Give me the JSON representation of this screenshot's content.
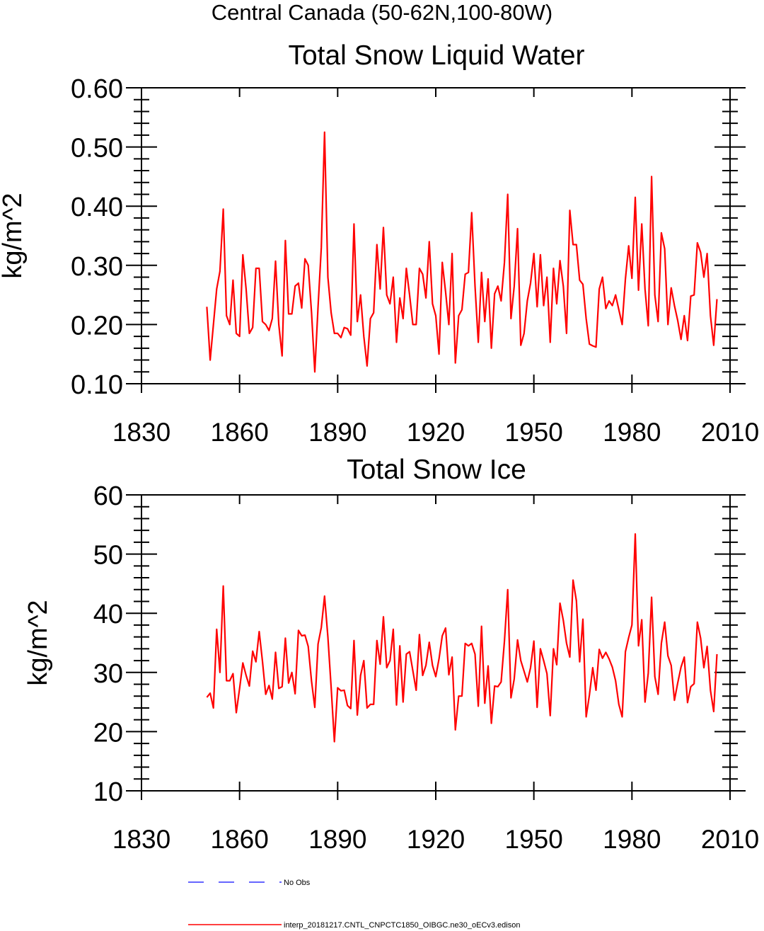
{
  "figure_title": "Central Canada (50-62N,100-80W)",
  "legend": [
    {
      "label": "No Obs",
      "color": "#3333ff",
      "style": "dashed"
    },
    {
      "label": "interp_20181217.CNTL_CNPCTC1850_OIBGC.ne30_oECv3.edison",
      "color": "#ff0000",
      "style": "solid"
    }
  ],
  "chart_data": [
    {
      "type": "line",
      "title": "Total Snow Liquid Water",
      "xlabel": "",
      "ylabel": "kg/m^2",
      "xlim": [
        1830,
        2010
      ],
      "ylim": [
        0.1,
        0.6
      ],
      "xticks": [
        "1830",
        "1860",
        "1890",
        "1920",
        "1950",
        "1980",
        "2010"
      ],
      "yticks": [
        "0.10",
        "0.20",
        "0.30",
        "0.40",
        "0.50",
        "0.60"
      ],
      "series": [
        {
          "name": "interp_20181217.CNTL_CNPCTC1850_OIBGC.ne30_oECv3.edison",
          "color": "#ff0000",
          "x_start": 1850,
          "values": [
            0.23,
            0.14,
            0.2,
            0.26,
            0.29,
            0.395,
            0.215,
            0.2,
            0.275,
            0.185,
            0.18,
            0.318,
            0.26,
            0.185,
            0.195,
            0.295,
            0.295,
            0.205,
            0.2,
            0.19,
            0.21,
            0.307,
            0.2,
            0.147,
            0.342,
            0.218,
            0.218,
            0.265,
            0.27,
            0.228,
            0.311,
            0.3,
            0.22,
            0.12,
            0.23,
            0.33,
            0.525,
            0.28,
            0.22,
            0.185,
            0.185,
            0.178,
            0.195,
            0.193,
            0.182,
            0.37,
            0.205,
            0.25,
            0.18,
            0.13,
            0.21,
            0.22,
            0.335,
            0.26,
            0.364,
            0.25,
            0.235,
            0.28,
            0.17,
            0.245,
            0.21,
            0.295,
            0.25,
            0.2,
            0.2,
            0.295,
            0.285,
            0.245,
            0.34,
            0.235,
            0.215,
            0.15,
            0.305,
            0.255,
            0.2,
            0.32,
            0.135,
            0.215,
            0.225,
            0.285,
            0.288,
            0.389,
            0.265,
            0.17,
            0.288,
            0.205,
            0.277,
            0.16,
            0.252,
            0.265,
            0.24,
            0.305,
            0.42,
            0.21,
            0.265,
            0.362,
            0.165,
            0.185,
            0.24,
            0.27,
            0.32,
            0.23,
            0.318,
            0.232,
            0.28,
            0.17,
            0.295,
            0.235,
            0.308,
            0.265,
            0.185,
            0.393,
            0.335,
            0.335,
            0.275,
            0.268,
            0.21,
            0.167,
            0.164,
            0.162,
            0.26,
            0.28,
            0.227,
            0.24,
            0.232,
            0.25,
            0.225,
            0.2,
            0.277,
            0.333,
            0.278,
            0.415,
            0.258,
            0.37,
            0.26,
            0.198,
            0.45,
            0.25,
            0.205,
            0.355,
            0.328,
            0.2,
            0.262,
            0.232,
            0.207,
            0.175,
            0.215,
            0.173,
            0.248,
            0.25,
            0.338,
            0.322,
            0.28,
            0.32,
            0.215,
            0.165,
            0.243
          ]
        }
      ]
    },
    {
      "type": "line",
      "title": "Total Snow Ice",
      "xlabel": "",
      "ylabel": "kg/m^2",
      "xlim": [
        1830,
        2010
      ],
      "ylim": [
        10,
        60
      ],
      "xticks": [
        "1830",
        "1860",
        "1890",
        "1920",
        "1950",
        "1980",
        "2010"
      ],
      "yticks": [
        "10",
        "20",
        "30",
        "40",
        "50",
        "60"
      ],
      "series": [
        {
          "name": "interp_20181217.CNTL_CNPCTC1850_OIBGC.ne30_oECv3.edison",
          "color": "#ff0000",
          "x_start": 1850,
          "values": [
            25.8,
            26.5,
            24,
            37.3,
            30,
            44.6,
            28.6,
            28.6,
            29.8,
            23.2,
            27.3,
            31.6,
            29.5,
            27.7,
            33.6,
            31.8,
            36.9,
            31.9,
            26.3,
            27.8,
            25.5,
            33.4,
            27.3,
            27.6,
            35.8,
            28.2,
            30,
            26.4,
            37.1,
            36.2,
            36.3,
            34.4,
            28.5,
            24.1,
            34.8,
            37.6,
            42.9,
            36,
            27.5,
            18.3,
            27.4,
            26.9,
            27,
            24.4,
            23.9,
            35.4,
            22.8,
            29.5,
            32,
            24,
            24.6,
            24.6,
            35.4,
            31.4,
            39.4,
            30.8,
            32,
            37.3,
            24.5,
            34.5,
            25,
            33.1,
            33.5,
            30.3,
            27,
            36.4,
            29.5,
            31.2,
            35.1,
            31.2,
            29.3,
            32.3,
            36.2,
            37.5,
            29.6,
            32.6,
            20.3,
            26,
            26,
            34.9,
            34.5,
            34.9,
            33.1,
            24.3,
            37.8,
            24.8,
            31.1,
            21.4,
            27.7,
            27.6,
            28.4,
            35.3,
            44,
            25.7,
            28.9,
            35.5,
            32,
            30.2,
            28.4,
            30.8,
            35.3,
            24.1,
            34,
            32,
            29.8,
            22.7,
            34,
            31.3,
            41.7,
            38.8,
            34.9,
            32.6,
            45.6,
            42.1,
            31.8,
            39,
            22.5,
            26.2,
            30.8,
            27,
            33.9,
            32.4,
            33.4,
            32.3,
            30.9,
            28.6,
            24.6,
            22.5,
            33.5,
            35.9,
            38,
            53.4,
            34.5,
            38.9,
            25,
            29.9,
            42.7,
            29.3,
            26.3,
            34.9,
            38.5,
            32.8,
            31.2,
            25.3,
            28.2,
            30.9,
            32.6,
            24.9,
            27.6,
            28.1,
            38.5,
            35.8,
            30.8,
            34.4,
            27,
            23.4,
            33.1
          ]
        }
      ]
    }
  ]
}
